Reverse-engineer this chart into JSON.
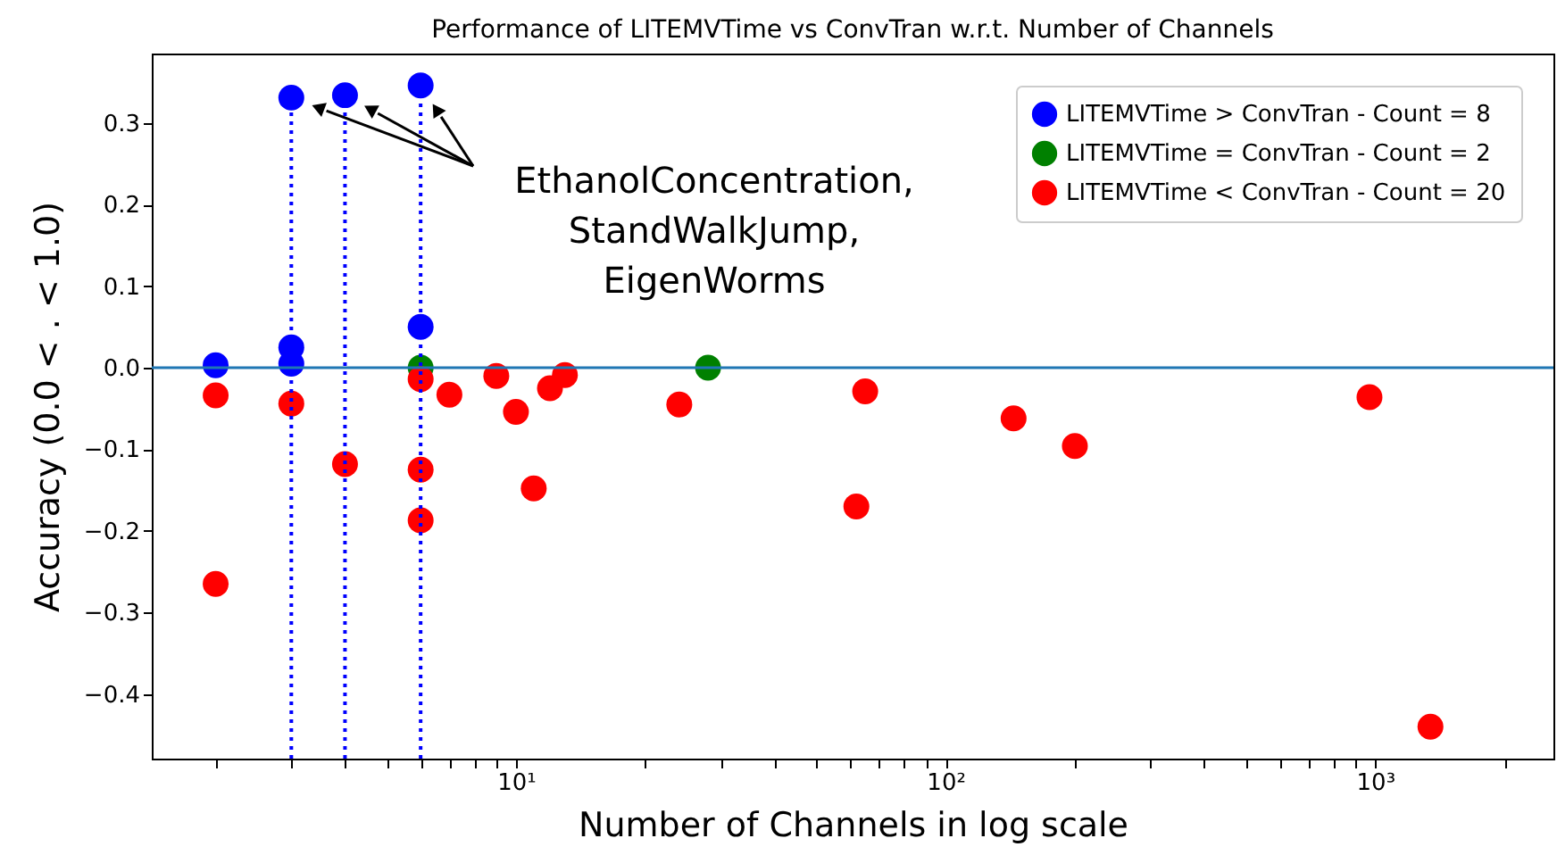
{
  "chart_data": {
    "type": "scatter",
    "title": "Performance of LITEMVTime vs ConvTran w.r.t. Number of Channels",
    "xlabel": "Number of Channels in log scale",
    "ylabel": "Accuracy (0.0 < . < 1.0)",
    "series": [
      {
        "name": "LITEMVTime > ConvTran - Count = 8",
        "color": "#0000ff",
        "x": [
          2,
          3,
          3,
          3,
          4,
          6,
          6
        ],
        "values": [
          0.003,
          0.025,
          0.005,
          0.331,
          0.334,
          0.346,
          0.05
        ]
      },
      {
        "name": "LITEMVTime = ConvTran - Count = 2",
        "color": "#008000",
        "x": [
          6,
          28
        ],
        "values": [
          0.0,
          0.0
        ]
      },
      {
        "name": "LITEMVTime < ConvTran - Count = 20",
        "color": "#ff0000",
        "x": [
          2,
          2,
          3,
          4,
          6,
          6,
          6,
          7,
          9,
          10,
          11,
          12,
          13,
          24,
          62,
          65,
          144,
          200,
          970,
          1345
        ],
        "values": [
          -0.034,
          -0.265,
          -0.044,
          -0.118,
          -0.014,
          -0.125,
          -0.187,
          -0.033,
          -0.01,
          -0.054,
          -0.148,
          -0.025,
          -0.009,
          -0.045,
          -0.17,
          -0.029,
          -0.062,
          -0.096,
          -0.036,
          -0.44
        ]
      }
    ],
    "log": "x",
    "xlim": [
      1.42,
      2600
    ],
    "ylim": [
      -0.479,
      0.385
    ],
    "xticks": [
      {
        "value": 2,
        "label": null
      },
      {
        "value": 3,
        "label": null
      },
      {
        "value": 4,
        "label": null
      },
      {
        "value": 5,
        "label": null
      },
      {
        "value": 6,
        "label": null
      },
      {
        "value": 7,
        "label": null
      },
      {
        "value": 8,
        "label": null
      },
      {
        "value": 9,
        "label": null
      },
      {
        "value": 10,
        "label": "10¹"
      },
      {
        "value": 20,
        "label": null
      },
      {
        "value": 30,
        "label": null
      },
      {
        "value": 40,
        "label": null
      },
      {
        "value": 50,
        "label": null
      },
      {
        "value": 60,
        "label": null
      },
      {
        "value": 70,
        "label": null
      },
      {
        "value": 80,
        "label": null
      },
      {
        "value": 90,
        "label": null
      },
      {
        "value": 100,
        "label": "10²"
      },
      {
        "value": 200,
        "label": null
      },
      {
        "value": 300,
        "label": null
      },
      {
        "value": 400,
        "label": null
      },
      {
        "value": 500,
        "label": null
      },
      {
        "value": 600,
        "label": null
      },
      {
        "value": 700,
        "label": null
      },
      {
        "value": 800,
        "label": null
      },
      {
        "value": 900,
        "label": null
      },
      {
        "value": 1000,
        "label": "10³"
      },
      {
        "value": 2000,
        "label": null
      }
    ],
    "yticks": [
      -0.4,
      -0.3,
      -0.2,
      -0.1,
      {
        "value": 0,
        "label": "0.0"
      },
      0.1,
      0.2,
      0.3
    ],
    "ref_lines": [
      {
        "axis": "y",
        "value": 0,
        "color": "#1f77b4",
        "line_style": "solid"
      },
      {
        "axis": "x",
        "value": 3,
        "color": "#0000ff",
        "line_style": "dotted"
      },
      {
        "axis": "x",
        "value": 4,
        "color": "#0000ff",
        "line_style": "dotted"
      },
      {
        "axis": "x",
        "value": 6,
        "color": "#0000ff",
        "line_style": "dotted"
      }
    ],
    "annotations": [
      "EthanolConcentration,\nStandWalkJump,\nEigenWorms"
    ],
    "marker": "circle",
    "grid": false,
    "legend": "top right"
  }
}
